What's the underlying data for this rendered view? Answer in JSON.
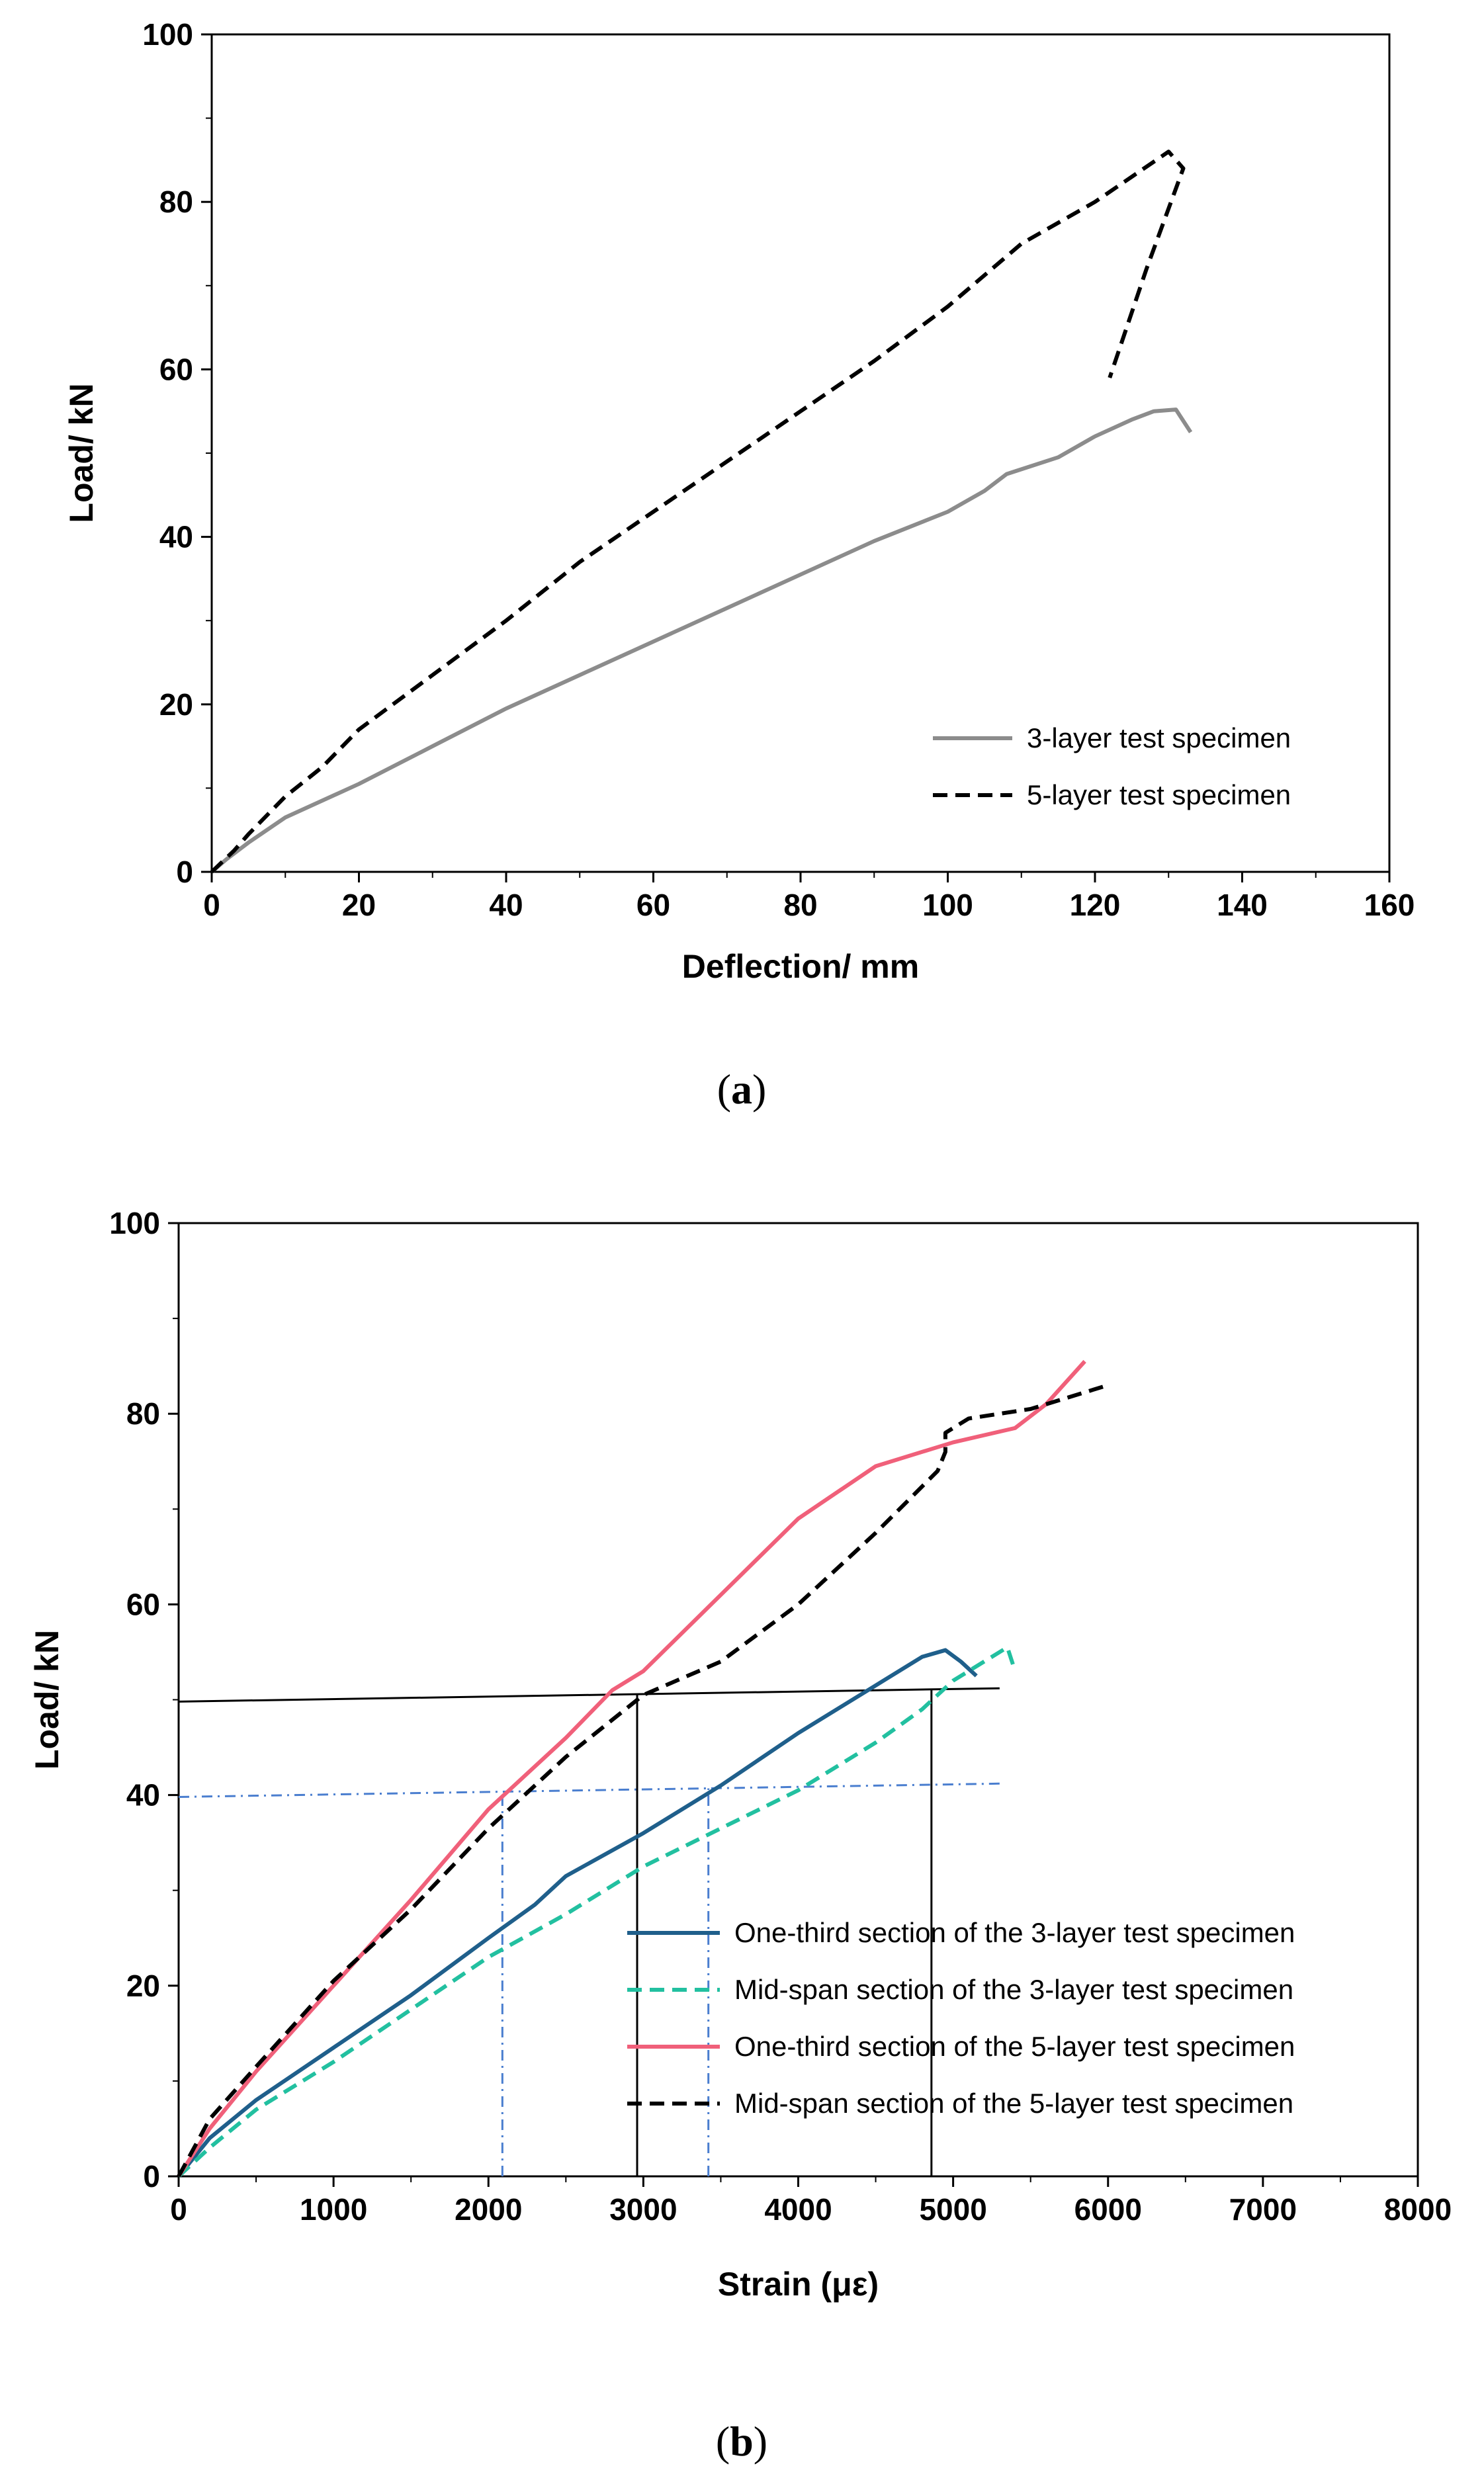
{
  "chart_data": [
    {
      "type": "line",
      "panel": "a",
      "caption_letter": "a",
      "xlabel": "Deflection/ mm",
      "ylabel": "Load/ kN",
      "xlim": [
        0,
        160
      ],
      "ylim": [
        0,
        100
      ],
      "xticks": [
        0,
        20,
        40,
        60,
        80,
        100,
        120,
        140,
        160
      ],
      "yticks": [
        0,
        20,
        40,
        60,
        80,
        100
      ],
      "legend_position": "bottom-right",
      "series": [
        {
          "name": "3-layer test specimen",
          "style": "solid",
          "color": "#8c8c8c",
          "points": [
            [
              0,
              0
            ],
            [
              2,
              1.5
            ],
            [
              5,
              3.5
            ],
            [
              10,
              6.5
            ],
            [
              15,
              8.5
            ],
            [
              20,
              10.5
            ],
            [
              30,
              15
            ],
            [
              40,
              19.5
            ],
            [
              50,
              23.5
            ],
            [
              60,
              27.5
            ],
            [
              70,
              31.5
            ],
            [
              80,
              35.5
            ],
            [
              90,
              39.5
            ],
            [
              100,
              43
            ],
            [
              105,
              45.5
            ],
            [
              108,
              47.5
            ],
            [
              115,
              49.5
            ],
            [
              120,
              52
            ],
            [
              125,
              54
            ],
            [
              128,
              55
            ],
            [
              131,
              55.2
            ],
            [
              133,
              52.5
            ]
          ]
        },
        {
          "name": "5-layer test specimen",
          "style": "dashed",
          "color": "#000000",
          "points": [
            [
              0,
              0
            ],
            [
              3,
              2.5
            ],
            [
              5,
              4.5
            ],
            [
              10,
              9
            ],
            [
              15,
              12.5
            ],
            [
              20,
              17
            ],
            [
              30,
              23.5
            ],
            [
              40,
              30
            ],
            [
              50,
              37
            ],
            [
              60,
              43
            ],
            [
              70,
              49
            ],
            [
              80,
              55
            ],
            [
              90,
              61
            ],
            [
              100,
              67.5
            ],
            [
              110,
              75
            ],
            [
              120,
              80
            ],
            [
              125,
              83
            ],
            [
              130,
              86
            ],
            [
              132,
              84
            ],
            [
              127,
              72
            ],
            [
              122,
              59
            ]
          ]
        }
      ]
    },
    {
      "type": "line",
      "panel": "b",
      "caption_letter": "b",
      "xlabel": "Strain (με)",
      "ylabel": "Load/ kN",
      "xlim": [
        0,
        8000
      ],
      "ylim": [
        0,
        100
      ],
      "xticks": [
        0,
        1000,
        2000,
        3000,
        4000,
        5000,
        6000,
        7000,
        8000
      ],
      "yticks": [
        0,
        20,
        40,
        60,
        80,
        100
      ],
      "legend_position": "lower-right",
      "series": [
        {
          "name": "One-third section of the 3-layer test specimen",
          "style": "solid",
          "color": "#1f5f8b",
          "points": [
            [
              0,
              0
            ],
            [
              200,
              4
            ],
            [
              500,
              8
            ],
            [
              1000,
              13.5
            ],
            [
              1500,
              19
            ],
            [
              2000,
              25
            ],
            [
              2300,
              28.5
            ],
            [
              2500,
              31.5
            ],
            [
              3000,
              36
            ],
            [
              3500,
              41
            ],
            [
              4000,
              46.5
            ],
            [
              4500,
              51.5
            ],
            [
              4800,
              54.5
            ],
            [
              4950,
              55.2
            ],
            [
              5050,
              54
            ],
            [
              5150,
              52.5
            ]
          ]
        },
        {
          "name": "Mid-span section of the 3-layer test specimen",
          "style": "dashed",
          "color": "#22c0a0",
          "points": [
            [
              0,
              0
            ],
            [
              200,
              3
            ],
            [
              500,
              7
            ],
            [
              1000,
              12
            ],
            [
              1500,
              17.5
            ],
            [
              2000,
              23
            ],
            [
              2500,
              27.5
            ],
            [
              3000,
              32.5
            ],
            [
              3500,
              36.5
            ],
            [
              4000,
              40.5
            ],
            [
              4500,
              45.5
            ],
            [
              4800,
              49
            ],
            [
              5000,
              52
            ],
            [
              5200,
              54
            ],
            [
              5350,
              55.5
            ],
            [
              5400,
              53
            ]
          ]
        },
        {
          "name": "One-third section of the 5-layer test specimen",
          "style": "solid",
          "color": "#f0607a",
          "points": [
            [
              0,
              0
            ],
            [
              200,
              5
            ],
            [
              500,
              11
            ],
            [
              1000,
              20
            ],
            [
              1500,
              29
            ],
            [
              2000,
              38.5
            ],
            [
              2500,
              46
            ],
            [
              2800,
              51
            ],
            [
              3000,
              53
            ],
            [
              3500,
              61
            ],
            [
              4000,
              69
            ],
            [
              4500,
              74.5
            ],
            [
              5000,
              77
            ],
            [
              5400,
              78.5
            ],
            [
              5600,
              81
            ],
            [
              5850,
              85.5
            ]
          ]
        },
        {
          "name": "Mid-span section of the 5-layer test specimen",
          "style": "dashed",
          "color": "#000000",
          "points": [
            [
              0,
              0
            ],
            [
              200,
              6
            ],
            [
              500,
              11.5
            ],
            [
              1000,
              20.5
            ],
            [
              1500,
              28
            ],
            [
              2000,
              36.5
            ],
            [
              2500,
              44
            ],
            [
              3000,
              50.5
            ],
            [
              3500,
              54
            ],
            [
              4000,
              60
            ],
            [
              4500,
              67.5
            ],
            [
              4900,
              74
            ],
            [
              4950,
              76
            ],
            [
              4950,
              78
            ],
            [
              5100,
              79.5
            ],
            [
              5500,
              80.5
            ],
            [
              6000,
              83
            ]
          ]
        }
      ],
      "reference_lines": [
        {
          "style": "solid",
          "color": "#000000",
          "points": [
            [
              0,
              49.8
            ],
            [
              5300,
              51.2
            ]
          ]
        },
        {
          "style": "dash-dot",
          "color": "#4a7ecf",
          "points": [
            [
              0,
              39.8
            ],
            [
              5300,
              41.2
            ]
          ]
        },
        {
          "style": "solid",
          "color": "#000000",
          "points": [
            [
              2960,
              0
            ],
            [
              2960,
              50.6
            ]
          ]
        },
        {
          "style": "solid",
          "color": "#000000",
          "points": [
            [
              4860,
              0
            ],
            [
              4860,
              51.1
            ]
          ]
        },
        {
          "style": "dash-dot",
          "color": "#4a7ecf",
          "points": [
            [
              2090,
              0
            ],
            [
              2090,
              40.3
            ]
          ]
        },
        {
          "style": "dash-dot",
          "color": "#4a7ecf",
          "points": [
            [
              3420,
              0
            ],
            [
              3420,
              40.7
            ]
          ]
        }
      ]
    }
  ]
}
